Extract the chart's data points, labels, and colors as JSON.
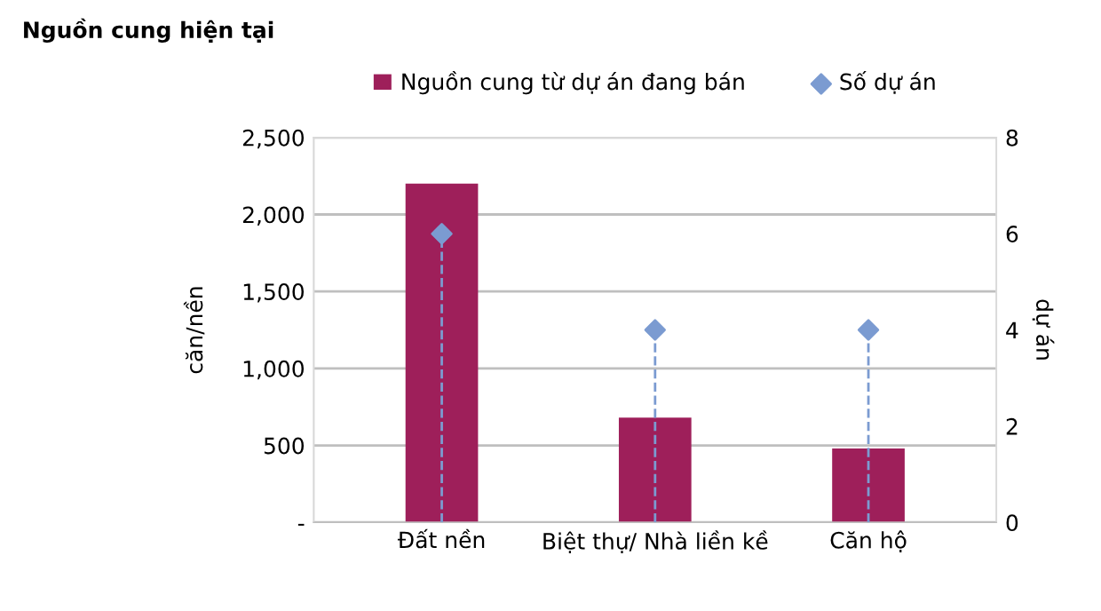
{
  "chart_data": {
    "type": "bar",
    "title": "Nguồn cung hiện tại",
    "ylabel": "căn/nền",
    "y2label": "dự án",
    "categories": [
      "Đất nền",
      "Biệt thự/ Nhà liền kề",
      "Căn hộ"
    ],
    "series": [
      {
        "name": "Nguồn cung từ dự án đang bán",
        "color": "#9e1f5a",
        "values": [
          2200,
          680,
          480
        ]
      },
      {
        "name": "Số dự án",
        "type": "scatter",
        "axis": "y2",
        "color": "#7b9bd1",
        "marker": "diamond",
        "line_style": "dashed",
        "values": [
          6,
          4,
          4
        ]
      }
    ],
    "ylim": [
      0,
      2500
    ],
    "yticks": [
      {
        "value": 0,
        "label": "-"
      },
      {
        "value": 500,
        "label": "500"
      },
      {
        "value": 1000,
        "label": "1,000"
      },
      {
        "value": 1500,
        "label": "1,500"
      },
      {
        "value": 2000,
        "label": "2,000"
      },
      {
        "value": 2500,
        "label": "2,500"
      }
    ],
    "y2lim": [
      0,
      8
    ],
    "y2ticks": [
      0,
      2,
      4,
      6,
      8
    ],
    "grid": "y",
    "legend": "top"
  }
}
